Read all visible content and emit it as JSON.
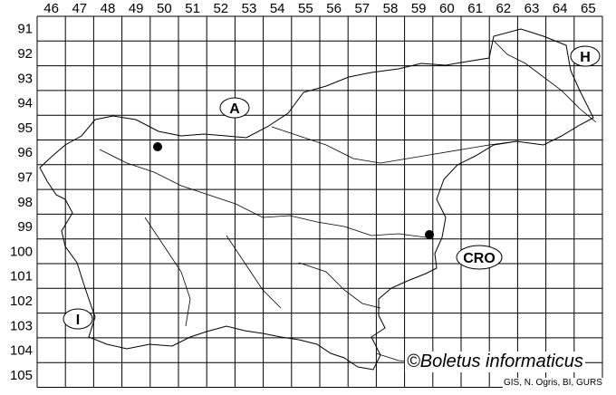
{
  "map": {
    "column_labels": [
      "46",
      "47",
      "48",
      "49",
      "50",
      "51",
      "52",
      "53",
      "54",
      "55",
      "56",
      "57",
      "58",
      "59",
      "60",
      "61",
      "62",
      "63",
      "64",
      "65"
    ],
    "row_labels": [
      "91",
      "92",
      "93",
      "94",
      "95",
      "96",
      "97",
      "98",
      "99",
      "100",
      "101",
      "102",
      "103",
      "104",
      "105"
    ],
    "country_labels": [
      {
        "code": "A"
      },
      {
        "code": "H"
      },
      {
        "code": "CRO"
      },
      {
        "code": "I"
      }
    ],
    "records": [
      {
        "column": "50",
        "row": "96"
      },
      {
        "column": "59",
        "row": "99"
      }
    ],
    "copyright": "©Boletus informaticus",
    "source": "GIS, N. Ogris, BI, GURS"
  }
}
